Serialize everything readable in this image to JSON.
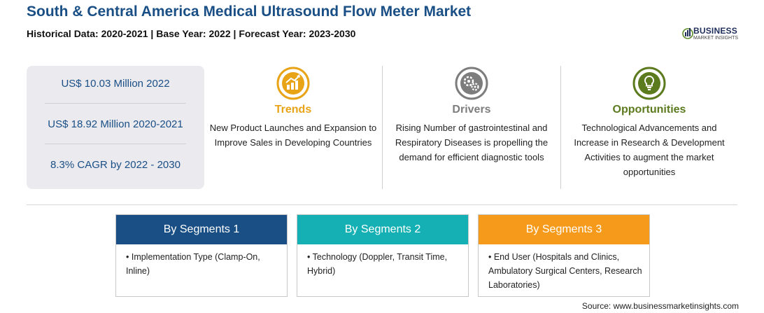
{
  "header": {
    "title": "South & Central America Medical Ultrasound Flow Meter Market",
    "subtitle": "Historical Data: 2020-2021 | Base Year: 2022 | Forecast Year: 2023-2030"
  },
  "logo": {
    "name": "BUSINESS",
    "tagline": "MARKET INSIGHTS",
    "icon": "bar-chart-globe-icon",
    "color": "#1f2d5a"
  },
  "stats": [
    "US$ 10.03 Million 2022",
    "US$ 18.92 Million 2020-2021",
    "8.3% CAGR by 2022 - 2030"
  ],
  "features": [
    {
      "title": "Trends",
      "color": "#e8a317",
      "icon": "trend-chart-icon",
      "text": "New Product Launches and Expansion to Improve Sales in Developing Countries"
    },
    {
      "title": "Drivers",
      "color": "#7d7d7d",
      "icon": "gears-icon",
      "text": "Rising Number of gastrointestinal and Respiratory Diseases is propelling the demand for efficient diagnostic tools"
    },
    {
      "title": "Opportunities",
      "color": "#5c7a1e",
      "icon": "lightbulb-icon",
      "text": "Technological Advancements and Increase in Research & Development Activities to augment the market opportunities"
    }
  ],
  "segments": [
    {
      "title": "By Segments 1",
      "color": "#1a4f86",
      "text": "• Implementation Type (Clamp-On, Inline)"
    },
    {
      "title": "By Segments 2",
      "color": "#14b0b4",
      "text": "• Technology (Doppler, Transit Time, Hybrid)"
    },
    {
      "title": "By Segments 3",
      "color": "#f59a1b",
      "text": "• End User (Hospitals and Clinics, Ambulatory Surgical Centers, Research Laboratories)"
    }
  ],
  "source": "Source: www.businessmarketinsights.com"
}
